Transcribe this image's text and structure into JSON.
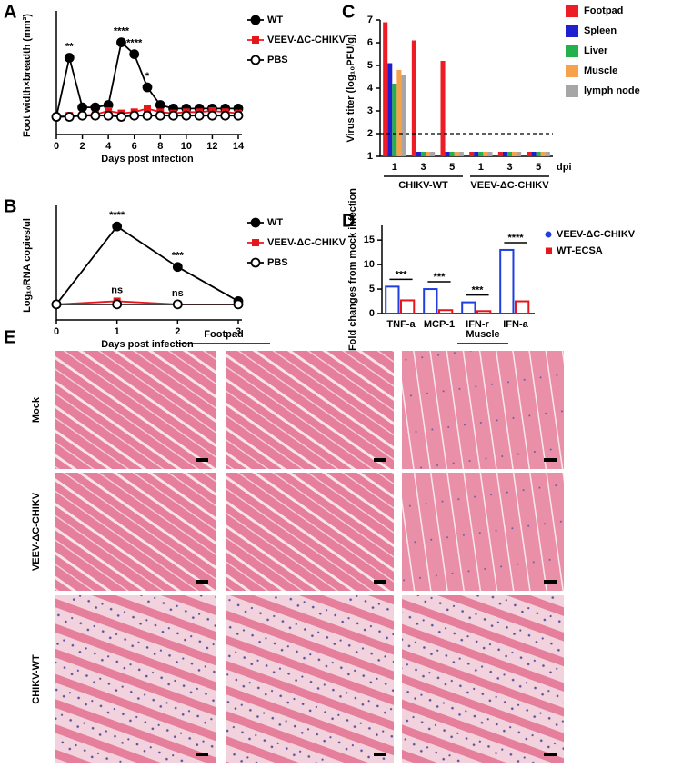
{
  "chart_data": [
    {
      "type": "line",
      "panel": "A",
      "xlabel": "Days post infection",
      "ylabel": "Foot width×breadth (mm²)",
      "x": [
        0,
        1,
        2,
        3,
        4,
        5,
        6,
        7,
        8,
        9,
        10,
        11,
        12,
        13,
        14
      ],
      "xlim": [
        0,
        14
      ],
      "xticks": [
        0,
        2,
        4,
        6,
        8,
        10,
        12,
        14
      ],
      "ylim": [
        5,
        15
      ],
      "series": [
        {
          "name": "WT",
          "color": "#000000",
          "marker": "circle",
          "values": [
            6.5,
            11.5,
            7.3,
            7.3,
            7.5,
            12.8,
            11.8,
            9,
            7.5,
            7.2,
            7.2,
            7.2,
            7.2,
            7.2,
            7.2
          ]
        },
        {
          "name": "VEEV-ΔC-CHIKV",
          "color": "#e8161b",
          "marker": "square",
          "values": [
            6.5,
            6.6,
            6.6,
            6.7,
            7,
            6.8,
            6.9,
            7.2,
            6.9,
            6.8,
            6.9,
            6.9,
            7,
            6.9,
            6.8
          ]
        },
        {
          "name": "PBS",
          "color": "#000000",
          "marker": "circle-open",
          "values": [
            6.5,
            6.5,
            6.6,
            6.6,
            6.6,
            6.5,
            6.6,
            6.6,
            6.6,
            6.6,
            6.6,
            6.6,
            6.6,
            6.6,
            6.6
          ]
        }
      ],
      "annotations": [
        {
          "text": "**",
          "x": 1,
          "series": 0
        },
        {
          "text": "****",
          "x": 5,
          "series": 0
        },
        {
          "text": "****",
          "x": 6,
          "series": 0
        },
        {
          "text": "*",
          "x": 7,
          "series": 0
        }
      ]
    },
    {
      "type": "line",
      "panel": "B",
      "xlabel": "Days post infection",
      "ylabel": "Log₁₀RNA copies/ul",
      "x": [
        0,
        1,
        2,
        3
      ],
      "xlim": [
        0,
        3
      ],
      "xticks": [
        0,
        1,
        2,
        3
      ],
      "ylim": [
        2.5,
        6
      ],
      "series": [
        {
          "name": "WT",
          "color": "#000000",
          "marker": "circle",
          "values": [
            3,
            5.5,
            4.2,
            3.1
          ]
        },
        {
          "name": "VEEV-ΔC-CHIKV",
          "color": "#e8161b",
          "marker": "square",
          "values": [
            3,
            3.1,
            3,
            3
          ]
        },
        {
          "name": "PBS",
          "color": "#000000",
          "marker": "circle-open",
          "values": [
            3,
            3,
            3,
            3
          ]
        }
      ],
      "annotations": [
        {
          "text": "****",
          "x": 1,
          "series": 0
        },
        {
          "text": "***",
          "x": 2,
          "series": 0
        },
        {
          "text": "ns",
          "x": 1,
          "series": 1
        },
        {
          "text": "ns",
          "x": 2,
          "series": 1
        }
      ]
    },
    {
      "type": "bar",
      "panel": "C",
      "ylabel": "Virus titer (log₁₀PFU/g)",
      "categories": [
        "1",
        "3",
        "5",
        "1",
        "3",
        "5"
      ],
      "groups": [
        "CHIKV-WT",
        "VEEV-ΔC-CHIKV"
      ],
      "x_unit": "dpi",
      "ylim": [
        1,
        7
      ],
      "yticks": [
        1,
        2,
        3,
        4,
        5,
        6,
        7
      ],
      "threshold": 2,
      "series": [
        {
          "name": "Footpad",
          "color": "#ee1c25",
          "values": [
            6.9,
            6.1,
            5.2,
            1.2,
            1.2,
            1.2
          ]
        },
        {
          "name": "Spleen",
          "color": "#1f1fcf",
          "values": [
            5.1,
            1.2,
            1.2,
            1.2,
            1.2,
            1.2
          ]
        },
        {
          "name": "Liver",
          "color": "#22b14c",
          "values": [
            4.2,
            1.2,
            1.2,
            1.2,
            1.2,
            1.2
          ]
        },
        {
          "name": "Muscle",
          "color": "#f7a24b",
          "values": [
            4.8,
            1.2,
            1.2,
            1.2,
            1.2,
            1.2
          ]
        },
        {
          "name": "lymph node",
          "color": "#a6a6a6",
          "values": [
            4.6,
            1.2,
            1.2,
            1.2,
            1.2,
            1.2
          ]
        }
      ]
    },
    {
      "type": "bar",
      "panel": "D",
      "ylabel": "Fold changes from mock infection",
      "categories": [
        "TNF-a",
        "MCP-1",
        "IFN-r",
        "IFN-a"
      ],
      "ylim": [
        0,
        18
      ],
      "yticks": [
        0,
        5,
        10,
        15
      ],
      "significance": [
        "***",
        "***",
        "***",
        "****"
      ],
      "series": [
        {
          "name": "VEEV-ΔC-CHIKV",
          "color": "#1f3fe0",
          "values": [
            5.5,
            5,
            2.3,
            13
          ]
        },
        {
          "name": "WT-ECSA",
          "color": "#e8161b",
          "values": [
            2.7,
            0.7,
            0.5,
            2.5
          ]
        }
      ]
    }
  ],
  "panel_e": {
    "panel": "E",
    "columns": [
      "Footpad",
      "Muscle"
    ],
    "rows": [
      "Mock",
      "VEEV-ΔC-CHIKV",
      "CHIKV-WT"
    ]
  }
}
